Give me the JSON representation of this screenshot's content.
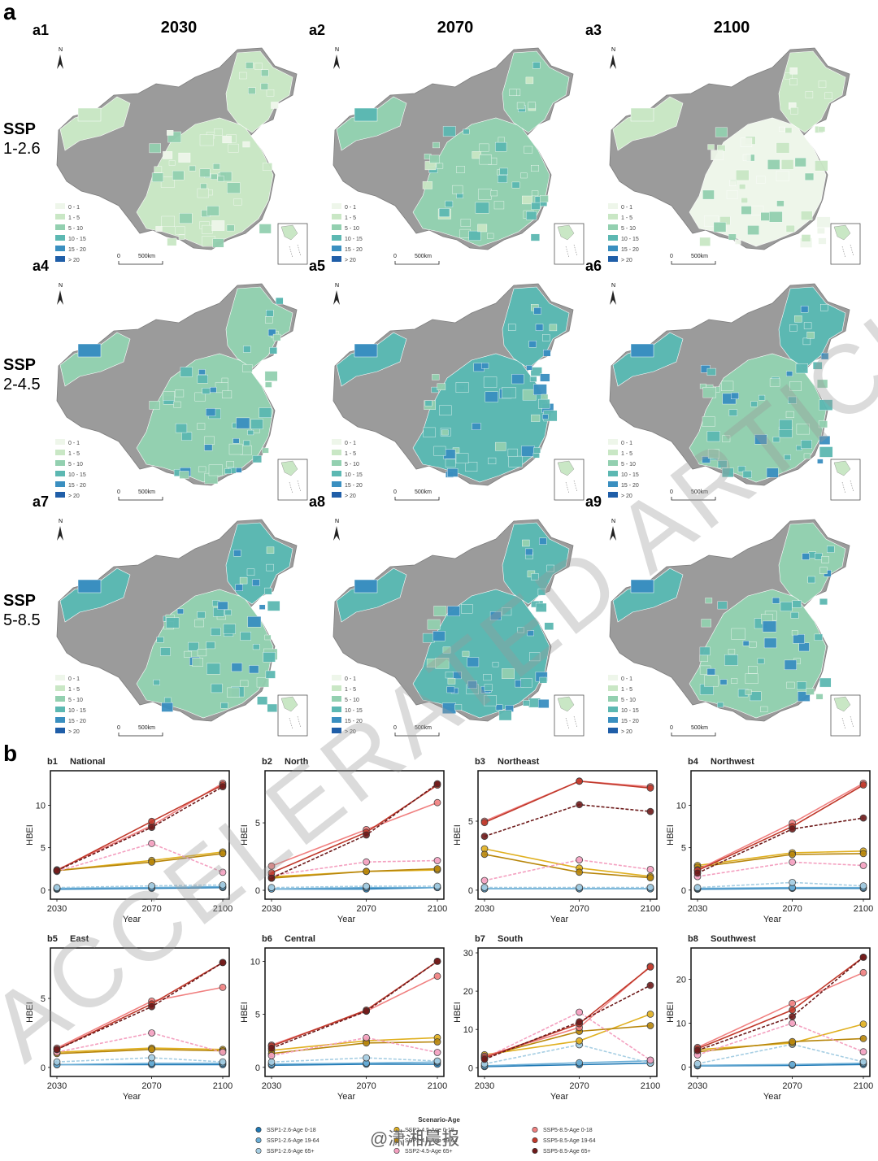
{
  "figure": {
    "panel_a_label": "a",
    "panel_b_label": "b",
    "watermark": "ACCELERATED ARTICLE PREVIEW",
    "weibo_mark": "@潇湘晨报"
  },
  "maps": {
    "columns": [
      "2030",
      "2070",
      "2100"
    ],
    "rows": [
      {
        "ssp_line1": "SSP",
        "ssp_line2": "1-2.6",
        "labels": [
          "a1",
          "a2",
          "a3"
        ]
      },
      {
        "ssp_line1": "SSP",
        "ssp_line2": "2-4.5",
        "labels": [
          "a4",
          "a5",
          "a6"
        ]
      },
      {
        "ssp_line1": "SSP",
        "ssp_line2": "5-8.5",
        "labels": [
          "a7",
          "a8",
          "a9"
        ]
      }
    ],
    "legend": [
      "0 - 1",
      "1 - 5",
      "5 - 10",
      "10 - 15",
      "15 - 20",
      "> 20"
    ],
    "legend_colors": [
      "#eef6ea",
      "#c9e7c5",
      "#93d0b0",
      "#5cb8b2",
      "#3a8fc0",
      "#1f5ea8"
    ],
    "no_data_color": "#9b9b9b",
    "north_label": "N",
    "scale_zero": "0",
    "scale_label": "500km"
  },
  "chart_data": [
    {
      "type": "line",
      "label": "b1",
      "title": "National",
      "xlabel": "Year",
      "ylabel": "HBEI",
      "x": [
        2030,
        2070,
        2100
      ],
      "ylim": [
        -0.5,
        13.5
      ],
      "yticks": [
        0,
        5,
        10
      ],
      "series": [
        {
          "name": "SSP1-2.6-Age 0-18",
          "values": [
            0.1,
            0.2,
            0.3
          ]
        },
        {
          "name": "SSP1-2.6-Age 19-64",
          "values": [
            0.2,
            0.3,
            0.4
          ]
        },
        {
          "name": "SSP1-2.6-Age 65+",
          "values": [
            0.3,
            0.5,
            0.6
          ]
        },
        {
          "name": "SSP2-4.5-Age 0-18",
          "values": [
            2.3,
            3.5,
            4.5
          ]
        },
        {
          "name": "SSP2-4.5-Age 19-64",
          "values": [
            2.3,
            3.3,
            4.3
          ]
        },
        {
          "name": "SSP2-4.5-Age 65+",
          "values": [
            2.2,
            5.5,
            2.1
          ]
        },
        {
          "name": "SSP5-8.5-Age 0-18",
          "values": [
            2.4,
            7.6,
            12.6
          ]
        },
        {
          "name": "SSP5-8.5-Age 19-64",
          "values": [
            2.3,
            8.1,
            12.4
          ]
        },
        {
          "name": "SSP5-8.5-Age 65+",
          "values": [
            2.3,
            7.4,
            12.2
          ]
        }
      ]
    },
    {
      "type": "line",
      "label": "b2",
      "title": "North",
      "xlabel": "Year",
      "ylabel": "HBEI",
      "x": [
        2030,
        2070,
        2100
      ],
      "ylim": [
        -0.3,
        8.5
      ],
      "yticks": [
        0,
        5
      ],
      "series": [
        {
          "name": "SSP1-2.6-Age 0-18",
          "values": [
            0.1,
            0.1,
            0.2
          ]
        },
        {
          "name": "SSP1-2.6-Age 19-64",
          "values": [
            0.1,
            0.2,
            0.2
          ]
        },
        {
          "name": "SSP1-2.6-Age 65+",
          "values": [
            0.2,
            0.3,
            0.3
          ]
        },
        {
          "name": "SSP2-4.5-Age 0-18",
          "values": [
            1.0,
            1.4,
            1.5
          ]
        },
        {
          "name": "SSP2-4.5-Age 19-64",
          "values": [
            0.9,
            1.4,
            1.6
          ]
        },
        {
          "name": "SSP2-4.5-Age 65+",
          "values": [
            1.1,
            2.1,
            2.2
          ]
        },
        {
          "name": "SSP5-8.5-Age 0-18",
          "values": [
            1.8,
            4.5,
            6.5
          ]
        },
        {
          "name": "SSP5-8.5-Age 19-64",
          "values": [
            1.3,
            4.3,
            7.8
          ]
        },
        {
          "name": "SSP5-8.5-Age 65+",
          "values": [
            0.9,
            4.1,
            7.9
          ]
        }
      ]
    },
    {
      "type": "line",
      "label": "b3",
      "title": "Northeast",
      "xlabel": "Year",
      "ylabel": "HBEI",
      "x": [
        2030,
        2070,
        2100
      ],
      "ylim": [
        -0.3,
        8.3
      ],
      "yticks": [
        0,
        5
      ],
      "series": [
        {
          "name": "SSP1-2.6-Age 0-18",
          "values": [
            0.1,
            0.1,
            0.1
          ]
        },
        {
          "name": "SSP1-2.6-Age 19-64",
          "values": [
            0.1,
            0.1,
            0.1
          ]
        },
        {
          "name": "SSP1-2.6-Age 65+",
          "values": [
            0.2,
            0.2,
            0.2
          ]
        },
        {
          "name": "SSP2-4.5-Age 0-18",
          "values": [
            3.0,
            1.6,
            1.0
          ]
        },
        {
          "name": "SSP2-4.5-Age 19-64",
          "values": [
            2.6,
            1.3,
            0.9
          ]
        },
        {
          "name": "SSP2-4.5-Age 65+",
          "values": [
            0.7,
            2.2,
            1.5
          ]
        },
        {
          "name": "SSP5-8.5-Age 0-18",
          "values": [
            5.0,
            7.9,
            7.5
          ]
        },
        {
          "name": "SSP5-8.5-Age 19-64",
          "values": [
            4.9,
            7.9,
            7.4
          ]
        },
        {
          "name": "SSP5-8.5-Age 65+",
          "values": [
            3.9,
            6.2,
            5.7
          ]
        }
      ]
    },
    {
      "type": "line",
      "label": "b4",
      "title": "Northwest",
      "xlabel": "Year",
      "ylabel": "HBEI",
      "x": [
        2030,
        2070,
        2100
      ],
      "ylim": [
        -0.5,
        13.5
      ],
      "yticks": [
        0,
        5,
        10
      ],
      "series": [
        {
          "name": "SSP1-2.6-Age 0-18",
          "values": [
            0.1,
            0.2,
            0.2
          ]
        },
        {
          "name": "SSP1-2.6-Age 19-64",
          "values": [
            0.2,
            0.3,
            0.3
          ]
        },
        {
          "name": "SSP1-2.6-Age 65+",
          "values": [
            0.3,
            0.9,
            0.5
          ]
        },
        {
          "name": "SSP2-4.5-Age 0-18",
          "values": [
            2.9,
            4.4,
            4.6
          ]
        },
        {
          "name": "SSP2-4.5-Age 19-64",
          "values": [
            2.7,
            4.2,
            4.3
          ]
        },
        {
          "name": "SSP2-4.5-Age 65+",
          "values": [
            1.6,
            3.3,
            2.9
          ]
        },
        {
          "name": "SSP5-8.5-Age 0-18",
          "values": [
            2.4,
            7.9,
            12.6
          ]
        },
        {
          "name": "SSP5-8.5-Age 19-64",
          "values": [
            2.3,
            7.5,
            12.4
          ]
        },
        {
          "name": "SSP5-8.5-Age 65+",
          "values": [
            2.0,
            7.2,
            8.5
          ]
        }
      ]
    },
    {
      "type": "line",
      "label": "b5",
      "title": "East",
      "xlabel": "Year",
      "ylabel": "HBEI",
      "x": [
        2030,
        2070,
        2100
      ],
      "ylim": [
        -0.3,
        8.3
      ],
      "yticks": [
        0,
        5
      ],
      "series": [
        {
          "name": "SSP1-2.6-Age 0-18",
          "values": [
            0.2,
            0.2,
            0.2
          ]
        },
        {
          "name": "SSP1-2.6-Age 19-64",
          "values": [
            0.2,
            0.3,
            0.3
          ]
        },
        {
          "name": "SSP1-2.6-Age 65+",
          "values": [
            0.4,
            0.7,
            0.4
          ]
        },
        {
          "name": "SSP2-4.5-Age 0-18",
          "values": [
            1.1,
            1.4,
            1.3
          ]
        },
        {
          "name": "SSP2-4.5-Age 19-64",
          "values": [
            1.0,
            1.3,
            1.2
          ]
        },
        {
          "name": "SSP2-4.5-Age 65+",
          "values": [
            1.1,
            2.5,
            1.1
          ]
        },
        {
          "name": "SSP5-8.5-Age 0-18",
          "values": [
            1.4,
            4.8,
            5.8
          ]
        },
        {
          "name": "SSP5-8.5-Age 19-64",
          "values": [
            1.3,
            4.6,
            7.6
          ]
        },
        {
          "name": "SSP5-8.5-Age 65+",
          "values": [
            1.3,
            4.4,
            7.6
          ]
        }
      ]
    },
    {
      "type": "line",
      "label": "b6",
      "title": "Central",
      "xlabel": "Year",
      "ylabel": "HBEI",
      "x": [
        2030,
        2070,
        2100
      ],
      "ylim": [
        -0.4,
        10.8
      ],
      "yticks": [
        0,
        5,
        10
      ],
      "series": [
        {
          "name": "SSP1-2.6-Age 0-18",
          "values": [
            0.2,
            0.3,
            0.3
          ]
        },
        {
          "name": "SSP1-2.6-Age 19-64",
          "values": [
            0.3,
            0.4,
            0.5
          ]
        },
        {
          "name": "SSP1-2.6-Age 65+",
          "values": [
            0.5,
            0.9,
            0.6
          ]
        },
        {
          "name": "SSP2-4.5-Age 0-18",
          "values": [
            1.6,
            2.5,
            2.8
          ]
        },
        {
          "name": "SSP2-4.5-Age 19-64",
          "values": [
            1.3,
            2.3,
            2.4
          ]
        },
        {
          "name": "SSP2-4.5-Age 65+",
          "values": [
            1.1,
            2.8,
            1.4
          ]
        },
        {
          "name": "SSP5-8.5-Age 0-18",
          "values": [
            2.1,
            5.3,
            8.6
          ]
        },
        {
          "name": "SSP5-8.5-Age 19-64",
          "values": [
            2.0,
            5.4,
            10.0
          ]
        },
        {
          "name": "SSP5-8.5-Age 65+",
          "values": [
            1.8,
            5.3,
            10.0
          ]
        }
      ]
    },
    {
      "type": "line",
      "label": "b7",
      "title": "South",
      "xlabel": "Year",
      "ylabel": "HBEI",
      "x": [
        2030,
        2070,
        2100
      ],
      "ylim": [
        -1,
        30
      ],
      "yticks": [
        0,
        10,
        20,
        30
      ],
      "series": [
        {
          "name": "SSP1-2.6-Age 0-18",
          "values": [
            0.3,
            0.8,
            1.2
          ]
        },
        {
          "name": "SSP1-2.6-Age 19-64",
          "values": [
            0.5,
            1.3,
            1.8
          ]
        },
        {
          "name": "SSP1-2.6-Age 65+",
          "values": [
            1.0,
            6.0,
            1.2
          ]
        },
        {
          "name": "SSP2-4.5-Age 0-18",
          "values": [
            3.4,
            7.0,
            14.0
          ]
        },
        {
          "name": "SSP2-4.5-Age 19-64",
          "values": [
            3.0,
            9.5,
            11.0
          ]
        },
        {
          "name": "SSP2-4.5-Age 65+",
          "values": [
            2.5,
            14.5,
            2.0
          ]
        },
        {
          "name": "SSP5-8.5-Age 0-18",
          "values": [
            3.0,
            10.5,
            26.5
          ]
        },
        {
          "name": "SSP5-8.5-Age 19-64",
          "values": [
            2.6,
            11.5,
            26.3
          ]
        },
        {
          "name": "SSP5-8.5-Age 65+",
          "values": [
            2.2,
            12.0,
            21.5
          ]
        }
      ]
    },
    {
      "type": "line",
      "label": "b8",
      "title": "Southwest",
      "xlabel": "Year",
      "ylabel": "HBEI",
      "x": [
        2030,
        2070,
        2100
      ],
      "ylim": [
        -1,
        26
      ],
      "yticks": [
        0,
        10,
        20
      ],
      "series": [
        {
          "name": "SSP1-2.6-Age 0-18",
          "values": [
            0.3,
            0.4,
            0.6
          ]
        },
        {
          "name": "SSP1-2.6-Age 19-64",
          "values": [
            0.4,
            0.6,
            0.9
          ]
        },
        {
          "name": "SSP1-2.6-Age 65+",
          "values": [
            0.8,
            5.2,
            1.2
          ]
        },
        {
          "name": "SSP2-4.5-Age 0-18",
          "values": [
            4.0,
            5.5,
            9.8
          ]
        },
        {
          "name": "SSP2-4.5-Age 19-64",
          "values": [
            3.5,
            5.8,
            6.5
          ]
        },
        {
          "name": "SSP2-4.5-Age 65+",
          "values": [
            2.8,
            10.0,
            3.5
          ]
        },
        {
          "name": "SSP5-8.5-Age 0-18",
          "values": [
            4.5,
            14.5,
            21.5
          ]
        },
        {
          "name": "SSP5-8.5-Age 19-64",
          "values": [
            4.2,
            13.0,
            25.0
          ]
        },
        {
          "name": "SSP5-8.5-Age 65+",
          "values": [
            3.8,
            11.5,
            25.0
          ]
        }
      ]
    }
  ],
  "series_colors": {
    "SSP1-2.6-Age 0-18": "#1f78b4",
    "SSP1-2.6-Age 19-64": "#6baed6",
    "SSP1-2.6-Age 65+": "#a6cee3",
    "SSP2-4.5-Age 0-18": "#e0b020",
    "SSP2-4.5-Age 19-64": "#b8860b",
    "SSP2-4.5-Age 65+": "#f4a0c0",
    "SSP5-8.5-Age 0-18": "#f08080",
    "SSP5-8.5-Age 19-64": "#c0392b",
    "SSP5-8.5-Age 65+": "#6d1a1a"
  },
  "chart_legend": {
    "title": "Scenario-Age",
    "items": [
      "SSP1-2.6-Age 0-18",
      "SSP1-2.6-Age 19-64",
      "SSP1-2.6-Age 65+",
      "SSP2-4.5-Age 0-18",
      "SSP2-4.5-Age 19-64",
      "SSP2-4.5-Age 65+",
      "SSP5-8.5-Age 0-18",
      "SSP5-8.5-Age 19-64",
      "SSP5-8.5-Age 65+"
    ]
  }
}
